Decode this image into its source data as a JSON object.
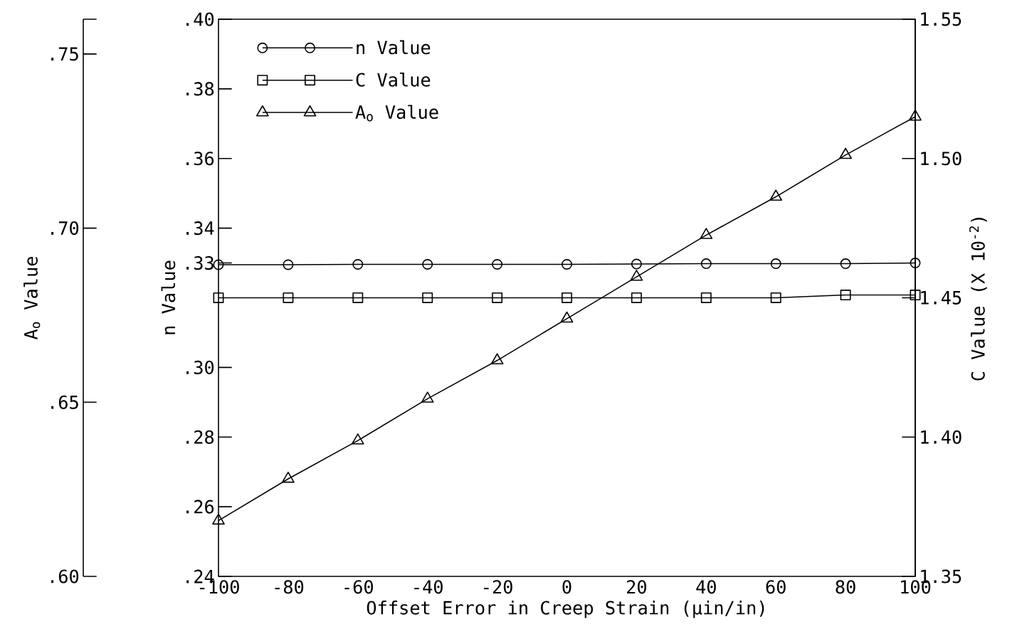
{
  "chart_data": {
    "type": "line",
    "xlabel": "Offset Error in Creep Strain (μin/in)",
    "ylabel": "n Value",
    "y2label": "C Value (X 10$^{-2}$)",
    "y3label": "A$_{o}$ Value",
    "x": [
      -100,
      -80,
      -60,
      -40,
      -20,
      0,
      20,
      40,
      60,
      80,
      100
    ],
    "xlim": [
      -100,
      100
    ],
    "xticks": [
      -100,
      -80,
      -60,
      -40,
      -20,
      0,
      20,
      40,
      60,
      80,
      100
    ],
    "ylim": [
      0.24,
      0.4
    ],
    "yticks": [
      {
        "value": 0.24,
        "label": ".24"
      },
      {
        "value": 0.26,
        "label": ".26"
      },
      {
        "value": 0.28,
        "label": ".28"
      },
      {
        "value": 0.3,
        "label": ".30"
      },
      {
        "value": 0.33,
        "label": ".33"
      },
      {
        "value": 0.34,
        "label": ".34"
      },
      {
        "value": 0.36,
        "label": ".36"
      },
      {
        "value": 0.38,
        "label": ".38"
      },
      {
        "value": 0.4,
        "label": ".40"
      }
    ],
    "y2lim": [
      1.35,
      1.55
    ],
    "y2ticks": [
      1.35,
      {
        "value": 1.4,
        "label": "1.40"
      },
      1.45,
      {
        "value": 1.5,
        "label": "1.50"
      },
      1.55
    ],
    "y3lim": [
      0.6,
      0.76
    ],
    "y3ticks": [
      {
        "value": 0.6,
        "label": ".60"
      },
      {
        "value": 0.65,
        "label": ".65"
      },
      {
        "value": 0.7,
        "label": ".70"
      },
      {
        "value": 0.75,
        "label": ".75"
      },
      {
        "value": 0.76,
        "label": null
      }
    ],
    "legend": "top left",
    "series": [
      {
        "name": "n Value",
        "color": "#000000",
        "marker": "circle",
        "values": [
          0.3295,
          0.3295,
          0.3296,
          0.3296,
          0.3296,
          0.3296,
          0.3297,
          0.3298,
          0.3298,
          0.3298,
          0.33
        ]
      },
      {
        "name": "C Value",
        "color": "#000000",
        "marker": "square",
        "axis": "y2",
        "values": [
          1.45,
          1.45,
          1.45,
          1.45,
          1.45,
          1.45,
          1.45,
          1.45,
          1.45,
          1.451,
          1.451
        ]
      },
      {
        "name": "A$_{o}$ Value",
        "color": "#000000",
        "marker": "triangle",
        "axis": "y3",
        "values": [
          0.616,
          0.628,
          0.639,
          0.651,
          0.662,
          0.674,
          0.686,
          0.698,
          0.709,
          0.721,
          0.732
        ]
      }
    ]
  }
}
